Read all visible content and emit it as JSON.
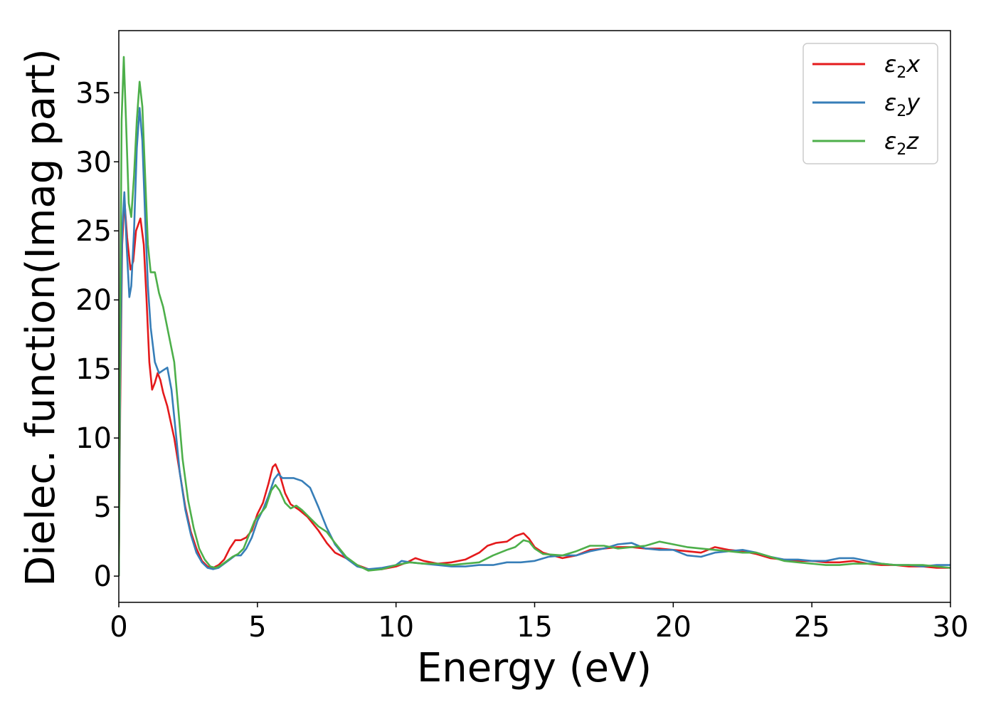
{
  "chart_data": {
    "type": "line",
    "title": "",
    "xlabel": "Energy (eV)",
    "ylabel": "Dielec. function(Imag part)",
    "xlim": [
      0,
      30
    ],
    "ylim": [
      -1.9,
      39.5
    ],
    "xticks": [
      0,
      5,
      10,
      15,
      20,
      25,
      30
    ],
    "yticks": [
      0,
      5,
      10,
      15,
      20,
      25,
      30,
      35
    ],
    "grid": false,
    "legend_position": "top-right",
    "series": [
      {
        "name": "ε₂x",
        "legend_base": "ε",
        "legend_sub": "2",
        "legend_suffix": "x",
        "color": "#e41a1c",
        "points": [
          [
            0,
            0
          ],
          [
            0.05,
            12
          ],
          [
            0.12,
            24
          ],
          [
            0.2,
            27.3
          ],
          [
            0.3,
            24.5
          ],
          [
            0.42,
            22.2
          ],
          [
            0.52,
            22.8
          ],
          [
            0.62,
            25
          ],
          [
            0.78,
            25.9
          ],
          [
            0.9,
            24
          ],
          [
            1.0,
            20
          ],
          [
            1.1,
            15.5
          ],
          [
            1.2,
            13.5
          ],
          [
            1.3,
            14
          ],
          [
            1.4,
            14.7
          ],
          [
            1.5,
            14.2
          ],
          [
            1.6,
            13.3
          ],
          [
            1.75,
            12.3
          ],
          [
            2.0,
            10
          ],
          [
            2.2,
            7.5
          ],
          [
            2.4,
            5
          ],
          [
            2.6,
            3.2
          ],
          [
            2.8,
            2
          ],
          [
            3.0,
            1.1
          ],
          [
            3.2,
            0.7
          ],
          [
            3.4,
            0.6
          ],
          [
            3.6,
            0.8
          ],
          [
            3.8,
            1.2
          ],
          [
            4.0,
            2
          ],
          [
            4.2,
            2.6
          ],
          [
            4.4,
            2.6
          ],
          [
            4.6,
            2.8
          ],
          [
            4.8,
            3.3
          ],
          [
            5.0,
            4.5
          ],
          [
            5.2,
            5.3
          ],
          [
            5.4,
            6.7
          ],
          [
            5.55,
            7.9
          ],
          [
            5.65,
            8.1
          ],
          [
            5.8,
            7.4
          ],
          [
            6.0,
            6
          ],
          [
            6.2,
            5.2
          ],
          [
            6.5,
            4.8
          ],
          [
            6.8,
            4.3
          ],
          [
            7.2,
            3.3
          ],
          [
            7.5,
            2.4
          ],
          [
            7.8,
            1.7
          ],
          [
            8.2,
            1.3
          ],
          [
            8.6,
            0.8
          ],
          [
            9.0,
            0.5
          ],
          [
            9.5,
            0.5
          ],
          [
            10.0,
            0.7
          ],
          [
            10.4,
            1
          ],
          [
            10.7,
            1.3
          ],
          [
            11.0,
            1.1
          ],
          [
            11.5,
            0.9
          ],
          [
            12.0,
            1
          ],
          [
            12.5,
            1.2
          ],
          [
            13.0,
            1.7
          ],
          [
            13.3,
            2.2
          ],
          [
            13.6,
            2.4
          ],
          [
            14.0,
            2.5
          ],
          [
            14.3,
            2.9
          ],
          [
            14.6,
            3.1
          ],
          [
            14.8,
            2.7
          ],
          [
            15.0,
            2.1
          ],
          [
            15.3,
            1.7
          ],
          [
            16.0,
            1.3
          ],
          [
            16.5,
            1.5
          ],
          [
            17.0,
            1.9
          ],
          [
            17.5,
            2
          ],
          [
            18.0,
            2.1
          ],
          [
            18.5,
            2.1
          ],
          [
            19.0,
            2
          ],
          [
            19.5,
            2
          ],
          [
            20.0,
            1.9
          ],
          [
            20.5,
            1.8
          ],
          [
            21.0,
            1.7
          ],
          [
            21.5,
            2.1
          ],
          [
            22.0,
            1.9
          ],
          [
            22.5,
            1.8
          ],
          [
            23.0,
            1.6
          ],
          [
            23.5,
            1.3
          ],
          [
            24.0,
            1.2
          ],
          [
            24.5,
            1.1
          ],
          [
            25.0,
            1.1
          ],
          [
            25.5,
            1
          ],
          [
            26.0,
            1
          ],
          [
            26.5,
            1.1
          ],
          [
            27.0,
            0.9
          ],
          [
            27.5,
            0.8
          ],
          [
            28.0,
            0.8
          ],
          [
            28.5,
            0.7
          ],
          [
            29.0,
            0.7
          ],
          [
            29.5,
            0.6
          ],
          [
            30.0,
            0.6
          ]
        ]
      },
      {
        "name": "ε₂y",
        "legend_base": "ε",
        "legend_sub": "2",
        "legend_suffix": "y",
        "color": "#377eb8",
        "points": [
          [
            0,
            0
          ],
          [
            0.05,
            14
          ],
          [
            0.12,
            25
          ],
          [
            0.2,
            27.8
          ],
          [
            0.28,
            24
          ],
          [
            0.38,
            20.2
          ],
          [
            0.45,
            21
          ],
          [
            0.55,
            25
          ],
          [
            0.65,
            31
          ],
          [
            0.75,
            33.9
          ],
          [
            0.85,
            31.5
          ],
          [
            0.95,
            26
          ],
          [
            1.05,
            21
          ],
          [
            1.15,
            18
          ],
          [
            1.3,
            15.5
          ],
          [
            1.45,
            14.7
          ],
          [
            1.6,
            14.9
          ],
          [
            1.75,
            15.1
          ],
          [
            1.9,
            13.5
          ],
          [
            2.05,
            10.5
          ],
          [
            2.2,
            7.5
          ],
          [
            2.4,
            4.8
          ],
          [
            2.6,
            3
          ],
          [
            2.8,
            1.7
          ],
          [
            3.0,
            1
          ],
          [
            3.2,
            0.6
          ],
          [
            3.4,
            0.5
          ],
          [
            3.6,
            0.6
          ],
          [
            3.8,
            0.9
          ],
          [
            4.0,
            1.2
          ],
          [
            4.2,
            1.5
          ],
          [
            4.4,
            1.5
          ],
          [
            4.6,
            2
          ],
          [
            4.8,
            2.8
          ],
          [
            5.0,
            4
          ],
          [
            5.2,
            4.8
          ],
          [
            5.4,
            5.8
          ],
          [
            5.6,
            7
          ],
          [
            5.75,
            7.4
          ],
          [
            5.9,
            7.1
          ],
          [
            6.1,
            7.1
          ],
          [
            6.3,
            7.1
          ],
          [
            6.6,
            6.9
          ],
          [
            6.9,
            6.4
          ],
          [
            7.2,
            5
          ],
          [
            7.5,
            3.5
          ],
          [
            7.8,
            2.3
          ],
          [
            8.2,
            1.3
          ],
          [
            8.6,
            0.7
          ],
          [
            9.0,
            0.5
          ],
          [
            9.5,
            0.6
          ],
          [
            10.0,
            0.8
          ],
          [
            10.2,
            1.1
          ],
          [
            10.5,
            1
          ],
          [
            11.0,
            0.9
          ],
          [
            11.5,
            0.8
          ],
          [
            12.0,
            0.7
          ],
          [
            12.5,
            0.7
          ],
          [
            13.0,
            0.8
          ],
          [
            13.5,
            0.8
          ],
          [
            14.0,
            1
          ],
          [
            14.5,
            1
          ],
          [
            15.0,
            1.1
          ],
          [
            15.5,
            1.4
          ],
          [
            16.0,
            1.5
          ],
          [
            16.5,
            1.5
          ],
          [
            17.0,
            1.8
          ],
          [
            17.5,
            2
          ],
          [
            18.0,
            2.3
          ],
          [
            18.5,
            2.4
          ],
          [
            19.0,
            2
          ],
          [
            19.5,
            1.9
          ],
          [
            20.0,
            1.9
          ],
          [
            20.5,
            1.5
          ],
          [
            21.0,
            1.4
          ],
          [
            21.5,
            1.7
          ],
          [
            22.0,
            1.8
          ],
          [
            22.5,
            1.9
          ],
          [
            23.0,
            1.7
          ],
          [
            23.5,
            1.4
          ],
          [
            24.0,
            1.2
          ],
          [
            24.5,
            1.2
          ],
          [
            25.0,
            1.1
          ],
          [
            25.5,
            1.1
          ],
          [
            26.0,
            1.3
          ],
          [
            26.5,
            1.3
          ],
          [
            27.0,
            1.1
          ],
          [
            27.5,
            0.9
          ],
          [
            28.0,
            0.8
          ],
          [
            28.5,
            0.8
          ],
          [
            29.0,
            0.7
          ],
          [
            29.5,
            0.8
          ],
          [
            30.0,
            0.8
          ]
        ]
      },
      {
        "name": "ε₂z",
        "legend_base": "ε",
        "legend_sub": "2",
        "legend_suffix": "z",
        "color": "#4daf4a",
        "points": [
          [
            0,
            0
          ],
          [
            0.04,
            16
          ],
          [
            0.1,
            33
          ],
          [
            0.18,
            37.6
          ],
          [
            0.26,
            33
          ],
          [
            0.36,
            27
          ],
          [
            0.45,
            26
          ],
          [
            0.55,
            29
          ],
          [
            0.65,
            33
          ],
          [
            0.75,
            35.8
          ],
          [
            0.85,
            34
          ],
          [
            0.95,
            29
          ],
          [
            1.05,
            24
          ],
          [
            1.15,
            22
          ],
          [
            1.3,
            22
          ],
          [
            1.45,
            20.5
          ],
          [
            1.6,
            19.5
          ],
          [
            1.8,
            17.5
          ],
          [
            2.0,
            15.5
          ],
          [
            2.15,
            12
          ],
          [
            2.3,
            8.5
          ],
          [
            2.5,
            5.5
          ],
          [
            2.7,
            3.5
          ],
          [
            2.9,
            2
          ],
          [
            3.1,
            1.2
          ],
          [
            3.3,
            0.7
          ],
          [
            3.5,
            0.6
          ],
          [
            3.7,
            0.8
          ],
          [
            3.9,
            1.1
          ],
          [
            4.1,
            1.4
          ],
          [
            4.3,
            1.6
          ],
          [
            4.5,
            2
          ],
          [
            4.7,
            3
          ],
          [
            4.9,
            4
          ],
          [
            5.1,
            4.5
          ],
          [
            5.3,
            5
          ],
          [
            5.5,
            6.2
          ],
          [
            5.65,
            6.6
          ],
          [
            5.8,
            6.2
          ],
          [
            6.0,
            5.3
          ],
          [
            6.2,
            4.9
          ],
          [
            6.4,
            5.1
          ],
          [
            6.6,
            4.8
          ],
          [
            6.9,
            4.2
          ],
          [
            7.2,
            3.6
          ],
          [
            7.5,
            3.2
          ],
          [
            7.8,
            2.4
          ],
          [
            8.2,
            1.4
          ],
          [
            8.6,
            0.8
          ],
          [
            9.0,
            0.4
          ],
          [
            9.5,
            0.5
          ],
          [
            10.0,
            0.8
          ],
          [
            10.5,
            1
          ],
          [
            11.0,
            0.9
          ],
          [
            11.5,
            0.9
          ],
          [
            12.0,
            0.8
          ],
          [
            12.5,
            0.9
          ],
          [
            13.0,
            1
          ],
          [
            13.5,
            1.5
          ],
          [
            14.0,
            1.9
          ],
          [
            14.3,
            2.1
          ],
          [
            14.6,
            2.6
          ],
          [
            14.8,
            2.5
          ],
          [
            15.0,
            2
          ],
          [
            15.3,
            1.6
          ],
          [
            16.0,
            1.5
          ],
          [
            16.5,
            1.8
          ],
          [
            17.0,
            2.2
          ],
          [
            17.5,
            2.2
          ],
          [
            18.0,
            2
          ],
          [
            18.5,
            2.1
          ],
          [
            19.0,
            2.2
          ],
          [
            19.5,
            2.5
          ],
          [
            20.0,
            2.3
          ],
          [
            20.5,
            2.1
          ],
          [
            21.0,
            2
          ],
          [
            21.5,
            1.9
          ],
          [
            22.0,
            1.8
          ],
          [
            22.5,
            1.7
          ],
          [
            23.0,
            1.7
          ],
          [
            23.5,
            1.4
          ],
          [
            24.0,
            1.1
          ],
          [
            24.5,
            1
          ],
          [
            25.0,
            0.9
          ],
          [
            25.5,
            0.8
          ],
          [
            26.0,
            0.8
          ],
          [
            26.5,
            0.9
          ],
          [
            27.0,
            0.9
          ],
          [
            27.5,
            0.9
          ],
          [
            28.0,
            0.8
          ],
          [
            28.5,
            0.8
          ],
          [
            29.0,
            0.8
          ],
          [
            29.5,
            0.7
          ],
          [
            30.0,
            0.6
          ]
        ]
      }
    ]
  }
}
